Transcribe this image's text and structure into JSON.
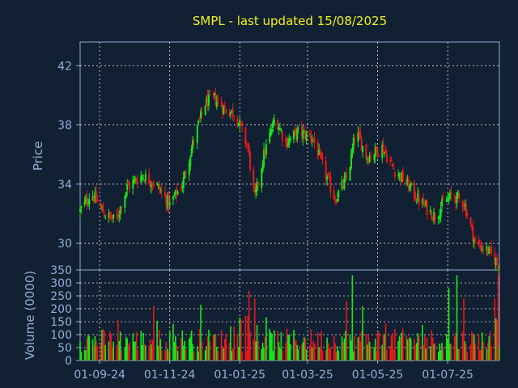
{
  "chart_data": [
    {
      "type": "candlestick",
      "title": "SMPL - last updated 15/08/2025",
      "ylabel": "Price",
      "ylim": [
        28.2,
        43.6
      ],
      "yticks": [
        30,
        34,
        38,
        42
      ],
      "ytick_labels": [
        "30",
        "34",
        "38",
        "42"
      ],
      "grid": true,
      "date_range": [
        "2024-08-15",
        "2025-08-15"
      ],
      "colors": {
        "up": "#19e619",
        "down": "#e61919",
        "background": "#122033",
        "grid": "#dcdcdc",
        "axis": "#8fb0d8",
        "title": "#f2f21a"
      },
      "anchors": [
        [
          "2024-08-15",
          32.2
        ],
        [
          "2024-08-25",
          33.4
        ],
        [
          "2024-09-05",
          32.0
        ],
        [
          "2024-09-15",
          31.5
        ],
        [
          "2024-09-25",
          33.8
        ],
        [
          "2024-10-08",
          34.6
        ],
        [
          "2024-10-20",
          34.0
        ],
        [
          "2024-11-01",
          32.6
        ],
        [
          "2024-11-12",
          34.0
        ],
        [
          "2024-11-22",
          37.0
        ],
        [
          "2024-12-02",
          39.5
        ],
        [
          "2024-12-10",
          39.8
        ],
        [
          "2024-12-20",
          39.0
        ],
        [
          "2024-12-28",
          38.8
        ],
        [
          "2025-01-08",
          36.5
        ],
        [
          "2025-01-14",
          33.0
        ],
        [
          "2025-01-22",
          36.0
        ],
        [
          "2025-02-01",
          38.5
        ],
        [
          "2025-02-10",
          36.8
        ],
        [
          "2025-02-20",
          37.5
        ],
        [
          "2025-03-05",
          37.2
        ],
        [
          "2025-03-15",
          35.0
        ],
        [
          "2025-03-25",
          33.0
        ],
        [
          "2025-04-05",
          34.5
        ],
        [
          "2025-04-12",
          37.6
        ],
        [
          "2025-04-22",
          35.8
        ],
        [
          "2025-05-05",
          36.5
        ],
        [
          "2025-05-15",
          35.0
        ],
        [
          "2025-05-25",
          34.2
        ],
        [
          "2025-06-05",
          33.0
        ],
        [
          "2025-06-20",
          31.8
        ],
        [
          "2025-06-28",
          32.8
        ],
        [
          "2025-07-05",
          33.2
        ],
        [
          "2025-07-15",
          32.8
        ],
        [
          "2025-07-25",
          30.0
        ],
        [
          "2025-08-05",
          29.5
        ],
        [
          "2025-08-15",
          28.5
        ]
      ]
    },
    {
      "type": "bar",
      "ylabel": "Volume (0000)",
      "ylim": [
        0,
        350
      ],
      "yticks": [
        0,
        50,
        100,
        150,
        200,
        250,
        300,
        350
      ],
      "ytick_labels": [
        "0",
        "50",
        "100",
        "150",
        "200",
        "250",
        "300",
        "350"
      ],
      "x_tick_labels": [
        "01-09-24",
        "01-11-24",
        "01-01-25",
        "01-03-25",
        "01-05-25",
        "01-07-25"
      ],
      "x_tick_dates": [
        "2024-09-01",
        "2024-11-01",
        "2025-01-01",
        "2025-03-01",
        "2025-05-01",
        "2025-07-01"
      ],
      "typical_volume": 75,
      "spikes": [
        [
          "2024-10-18",
          210
        ],
        [
          "2024-11-28",
          215
        ],
        [
          "2025-01-09",
          270
        ],
        [
          "2025-01-14",
          240
        ],
        [
          "2025-04-04",
          230
        ],
        [
          "2025-04-09",
          330
        ],
        [
          "2025-04-18",
          210
        ],
        [
          "2025-05-03",
          250
        ],
        [
          "2025-06-21",
          200
        ],
        [
          "2025-07-02",
          280
        ],
        [
          "2025-07-09",
          330
        ],
        [
          "2025-07-15",
          240
        ],
        [
          "2025-08-14",
          330
        ],
        [
          "2025-08-11",
          240
        ]
      ]
    }
  ]
}
